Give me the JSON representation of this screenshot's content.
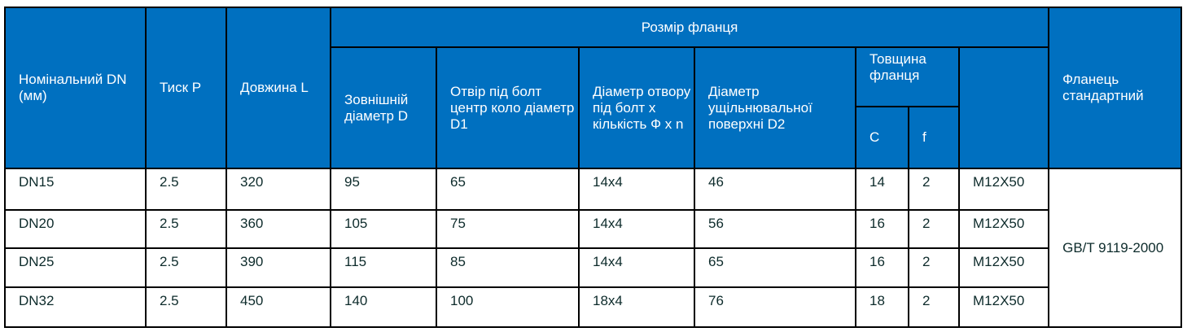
{
  "header": {
    "nominal": "Номінальний DN (мм)",
    "pressure": "Тиск P",
    "length": "Довжина L",
    "flange_size": "Розмір фланця",
    "outer_diameter": "Зовнішній діаметр D",
    "bolt_circle": "Отвір під болт центр коло діаметр D1",
    "bolt_hole": "Діаметр отвору під болт x кількість Ф x n",
    "seal_surface": "Діаметр ущільнювальної поверхні D2",
    "thickness": "Товщина фланця",
    "c": "C",
    "f": "f",
    "bolt": "",
    "standard": "Фланець стандартний"
  },
  "rows": [
    {
      "dn": "DN15",
      "p": "2.5",
      "l": "320",
      "d": "95",
      "d1": "65",
      "holes": "14x4",
      "d2": "46",
      "c": "14",
      "f": "2",
      "bolt": "M12X50"
    },
    {
      "dn": "DN20",
      "p": "2.5",
      "l": "360",
      "d": "105",
      "d1": "75",
      "holes": "14x4",
      "d2": "56",
      "c": "16",
      "f": "2",
      "bolt": "M12X50"
    },
    {
      "dn": "DN25",
      "p": "2.5",
      "l": "390",
      "d": "115",
      "d1": "85",
      "holes": "14x4",
      "d2": "65",
      "c": "16",
      "f": "2",
      "bolt": "M12X50"
    },
    {
      "dn": "DN32",
      "p": "2.5",
      "l": "450",
      "d": "140",
      "d1": "100",
      "holes": "18x4",
      "d2": "76",
      "c": "18",
      "f": "2",
      "bolt": "M12X50"
    }
  ],
  "standard_value": "GB/T 9119-2000",
  "colors": {
    "header_bg": "#0070c0",
    "header_text": "#ffffff",
    "border": "#000000"
  }
}
